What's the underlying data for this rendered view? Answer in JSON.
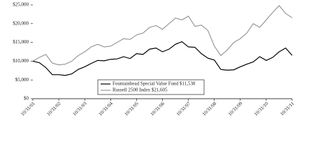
{
  "chart_data": {
    "type": "line",
    "categories": [
      "10/31/01",
      null,
      null,
      null,
      "10/31/02",
      null,
      null,
      null,
      "10/31/03",
      null,
      null,
      null,
      "10/31/04",
      null,
      null,
      null,
      "10/31/05",
      null,
      null,
      null,
      "10/31/06",
      null,
      null,
      null,
      "10/31/07",
      null,
      null,
      null,
      "10/31/08",
      null,
      null,
      null,
      "10/31/09",
      null,
      null,
      null,
      "10/31/10",
      null,
      null,
      null,
      "10/31/11"
    ],
    "series": [
      {
        "name": "Fountainhead Special Value Fund $11,538",
        "color": "#000000",
        "values": [
          10000,
          9600,
          8300,
          6400,
          6400,
          6200,
          6600,
          7800,
          8500,
          9400,
          10200,
          10100,
          10500,
          10600,
          11200,
          10700,
          12000,
          11800,
          13200,
          13500,
          12500,
          13200,
          14500,
          15200,
          13800,
          13700,
          12000,
          10800,
          10300,
          7800,
          7600,
          7700,
          8500,
          9200,
          9800,
          11200,
          10200,
          11000,
          12500,
          13500,
          11538
        ]
      },
      {
        "name": "Russell 2500 Index $21,605",
        "color": "#999999",
        "values": [
          10000,
          11000,
          11800,
          9500,
          9000,
          9200,
          10000,
          11500,
          12500,
          13800,
          14500,
          13800,
          14000,
          15000,
          16000,
          15800,
          17000,
          17500,
          19000,
          19500,
          18500,
          20000,
          21500,
          21000,
          22000,
          19300,
          19600,
          18200,
          14000,
          11500,
          13000,
          15000,
          16000,
          17500,
          20000,
          19000,
          21000,
          23000,
          24800,
          22700,
          21605
        ]
      }
    ],
    "ylim": [
      0,
      25000
    ],
    "yticks": [
      {
        "value": 0,
        "label": "$0"
      },
      {
        "value": 5000,
        "label": "$5,000"
      },
      {
        "value": 10000,
        "label": "$10,000"
      },
      {
        "value": 15000,
        "label": "$15,000"
      },
      {
        "value": 20000,
        "label": "$20,000"
      },
      {
        "value": 25000,
        "label": "$25,000"
      }
    ],
    "grid": false
  }
}
